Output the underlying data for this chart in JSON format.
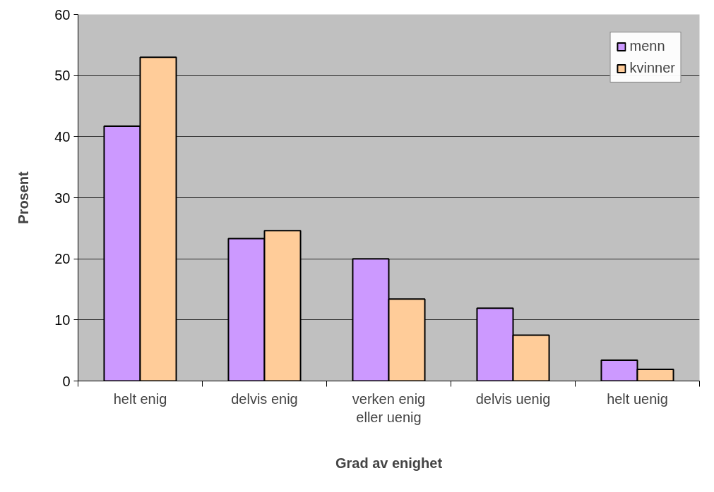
{
  "chart_data": {
    "type": "bar",
    "xlabel": "Grad av enighet",
    "ylabel": "Prosent",
    "categories": [
      "helt enig",
      "delvis enig",
      "verken enig\neller uenig",
      "delvis uenig",
      "helt uenig"
    ],
    "series": [
      {
        "name": "menn",
        "color": "#cc99ff",
        "values": [
          41.7,
          23.3,
          20.0,
          11.9,
          3.4
        ]
      },
      {
        "name": "kvinner",
        "color": "#ffcc99",
        "values": [
          53.0,
          24.6,
          13.4,
          7.5,
          1.9
        ]
      }
    ],
    "ylim": [
      0,
      60
    ],
    "yticks": [
      0,
      10,
      20,
      30,
      40,
      50,
      60
    ],
    "grid": "y",
    "legend": "top right"
  }
}
